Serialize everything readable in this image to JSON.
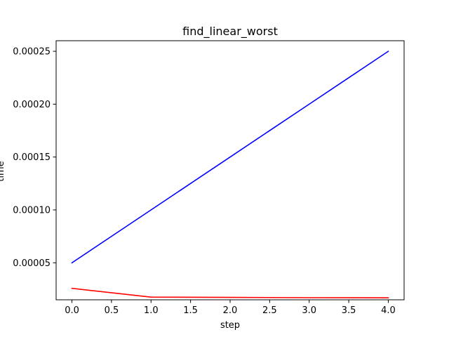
{
  "chart_data": {
    "type": "line",
    "title": "find_linear_worst",
    "xlabel": "step",
    "ylabel": "time",
    "xlim": [
      -0.2,
      4.2
    ],
    "ylim": [
      1.5e-05,
      0.00026
    ],
    "x_ticks": [
      {
        "value": 0.0,
        "label": "0.0"
      },
      {
        "value": 0.5,
        "label": "0.5"
      },
      {
        "value": 1.0,
        "label": "1.0"
      },
      {
        "value": 1.5,
        "label": "1.5"
      },
      {
        "value": 2.0,
        "label": "2.0"
      },
      {
        "value": 2.5,
        "label": "2.5"
      },
      {
        "value": 3.0,
        "label": "3.0"
      },
      {
        "value": 3.5,
        "label": "3.5"
      },
      {
        "value": 4.0,
        "label": "4.0"
      }
    ],
    "y_ticks": [
      {
        "value": 5e-05,
        "label": "0.00005"
      },
      {
        "value": 0.0001,
        "label": "0.00010"
      },
      {
        "value": 0.00015,
        "label": "0.00015"
      },
      {
        "value": 0.0002,
        "label": "0.00020"
      },
      {
        "value": 0.00025,
        "label": "0.00025"
      }
    ],
    "grid": false,
    "legend": "none",
    "x": [
      0,
      1,
      2,
      3,
      4
    ],
    "series": [
      {
        "color": "#0000ff",
        "values": [
          5e-05,
          0.0001,
          0.00015,
          0.0002,
          0.00025
        ]
      },
      {
        "color": "#ff0000",
        "values": [
          2.58e-05,
          1.75e-05,
          1.73e-05,
          1.7e-05,
          1.69e-05
        ]
      }
    ]
  }
}
